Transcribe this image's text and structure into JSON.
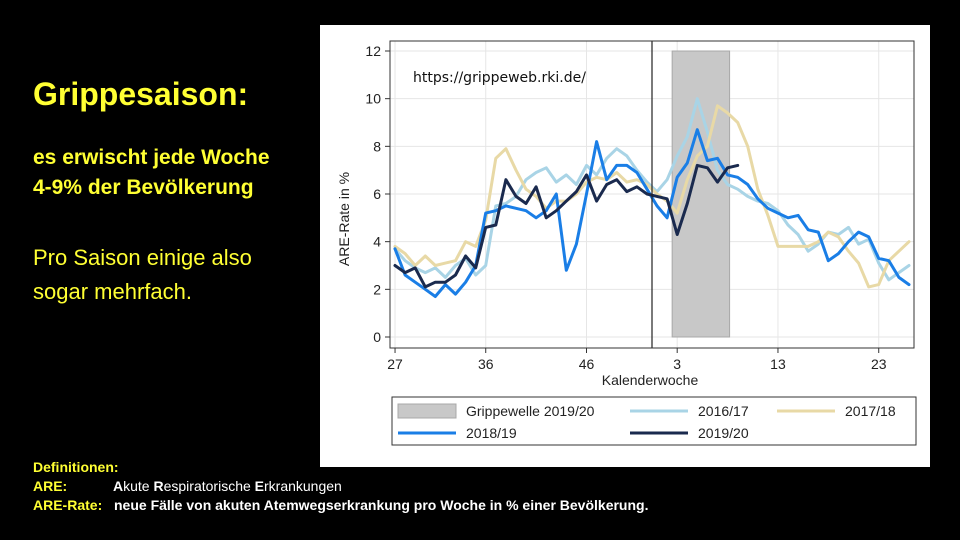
{
  "slide": {
    "title": "Grippesaison:",
    "subtitle_lines": [
      "es erwischt jede Woche",
      "4-9% der Bevölkerung"
    ],
    "body_lines": [
      "Pro Saison einige also",
      "sogar mehrfach."
    ],
    "definitions_heading": "Definitionen:",
    "definitions": [
      {
        "term": "ARE:",
        "desc_parts": [
          {
            "text": "A",
            "bold": true
          },
          {
            "text": "kute ",
            "bold": false
          },
          {
            "text": "R",
            "bold": true
          },
          {
            "text": "espiratorische ",
            "bold": false
          },
          {
            "text": "E",
            "bold": true
          },
          {
            "text": "rkrankungen",
            "bold": false
          }
        ]
      },
      {
        "term": "ARE-Rate:",
        "desc_parts": [
          {
            "text": "neue Fälle von akuten Atemwegserkrankung pro Woche in % einer Bevölkerung.",
            "bold": true
          }
        ]
      }
    ],
    "colors": {
      "accent": "#ffff33",
      "background": "#000000"
    }
  },
  "chart_data": {
    "type": "line",
    "source_note": "https://grippeweb.rki.de/",
    "xlabel": "Kalenderwoche",
    "ylabel": "ARE-Rate in %",
    "ylim": [
      0,
      12
    ],
    "y_ticks": [
      0,
      2,
      4,
      6,
      8,
      10,
      12
    ],
    "x_tick_labels": [
      "27",
      "36",
      "46",
      "3",
      "13",
      "23"
    ],
    "x_tick_positions": [
      0,
      9,
      19,
      28,
      38,
      48
    ],
    "x_range": [
      -0.5,
      51.5
    ],
    "season_break_x": 25.5,
    "grid": true,
    "legend_position": "bottom",
    "flu_wave": {
      "name": "Grippewelle 2019/20",
      "x_start": 27.5,
      "x_end": 33.2,
      "y_top": 12,
      "color": "#c8c8c8"
    },
    "series": [
      {
        "name": "2016/17",
        "color": "#a9d4e6",
        "values": [
          3.7,
          3.2,
          2.9,
          2.7,
          2.9,
          2.5,
          3.0,
          3.3,
          2.6,
          3.0,
          5.5,
          5.6,
          5.9,
          6.6,
          6.9,
          7.1,
          6.5,
          6.8,
          6.4,
          7.2,
          6.8,
          7.5,
          7.9,
          7.6,
          7.0,
          6.5,
          6.1,
          6.6,
          7.6,
          8.4,
          10.0,
          8.6,
          7.0,
          6.4,
          6.2,
          5.9,
          5.7,
          5.6,
          5.3,
          4.7,
          4.3,
          3.6,
          3.9,
          4.4,
          4.3,
          4.6,
          3.9,
          4.1,
          3.1,
          2.4,
          2.7,
          3.0
        ]
      },
      {
        "name": "2017/18",
        "color": "#e8d9a6",
        "values": [
          3.8,
          3.5,
          3.0,
          3.4,
          3.0,
          3.1,
          3.2,
          4.0,
          3.8,
          4.9,
          7.5,
          7.9,
          7.0,
          6.2,
          5.9,
          5.4,
          5.7,
          5.7,
          6.0,
          6.5,
          6.7,
          6.6,
          6.9,
          6.5,
          6.6,
          6.4,
          6.0,
          5.7,
          5.2,
          6.6,
          7.6,
          8.0,
          9.7,
          9.4,
          9.0,
          8.0,
          6.2,
          5.1,
          3.8,
          3.8,
          3.8,
          3.8,
          4.0,
          4.4,
          4.2,
          3.6,
          3.1,
          2.1,
          2.2,
          3.2,
          3.6,
          4.0
        ]
      },
      {
        "name": "2018/19",
        "color": "#1a7ee6",
        "values": [
          3.7,
          2.6,
          2.3,
          2.0,
          1.7,
          2.2,
          1.8,
          2.3,
          3.0,
          5.2,
          5.3,
          5.5,
          5.4,
          5.3,
          5.0,
          5.3,
          6.0,
          2.8,
          3.9,
          6.0,
          8.2,
          6.6,
          7.2,
          7.2,
          6.9,
          6.2,
          5.5,
          5.0,
          6.7,
          7.3,
          8.7,
          7.4,
          7.5,
          6.8,
          6.7,
          6.4,
          5.8,
          5.4,
          5.2,
          5.0,
          5.1,
          4.5,
          4.4,
          3.2,
          3.5,
          4.0,
          4.4,
          4.2,
          3.3,
          3.2,
          2.5,
          2.2
        ]
      },
      {
        "name": "2019/20",
        "color": "#1a2a4e",
        "values": [
          3.0,
          2.7,
          2.9,
          2.1,
          2.3,
          2.3,
          2.6,
          3.4,
          2.9,
          4.6,
          4.7,
          6.6,
          5.9,
          5.6,
          6.3,
          5.0,
          5.3,
          5.7,
          6.1,
          6.8,
          5.7,
          6.4,
          6.6,
          6.1,
          6.3,
          6.0,
          5.9,
          5.8,
          4.3,
          5.6,
          7.2,
          7.1,
          6.5,
          7.1,
          7.2
        ]
      }
    ],
    "legend_order": [
      "Grippewelle 2019/20",
      "2016/17",
      "2017/18",
      "2018/19",
      "2019/20"
    ]
  }
}
